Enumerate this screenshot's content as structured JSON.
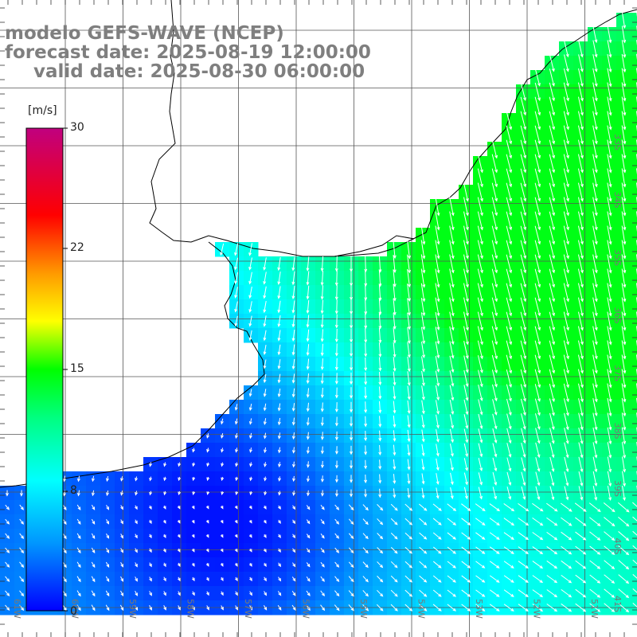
{
  "header": {
    "title": "modelo GEFS-WAVE (NCEP)",
    "forecast": "forecast date: 2025-08-19 12:00:00",
    "valid": "valid date: 2025-08-30 06:00:00"
  },
  "colorbar": {
    "unit": "[m/s]",
    "ticks": [
      "30",
      "22",
      "15",
      "8",
      "0"
    ],
    "tick_values": [
      30,
      22,
      15,
      8,
      0
    ],
    "range": [
      0,
      30
    ],
    "colors": [
      "#0000ff",
      "#00c8ff",
      "#00ffff",
      "#00ff00",
      "#ffff00",
      "#ff7f00",
      "#ff0000",
      "#c0007f"
    ]
  },
  "map": {
    "lon_labels": [
      "61W",
      "60W",
      "59W",
      "58W",
      "57W",
      "56W",
      "55W",
      "54W",
      "53W",
      "52W",
      "51W"
    ],
    "lat_labels": [
      "33S",
      "34S",
      "35S",
      "36S",
      "37S",
      "38S",
      "39S",
      "40S",
      "41S"
    ],
    "background": "#ffffff",
    "arrow_color": "#ffffff"
  }
}
